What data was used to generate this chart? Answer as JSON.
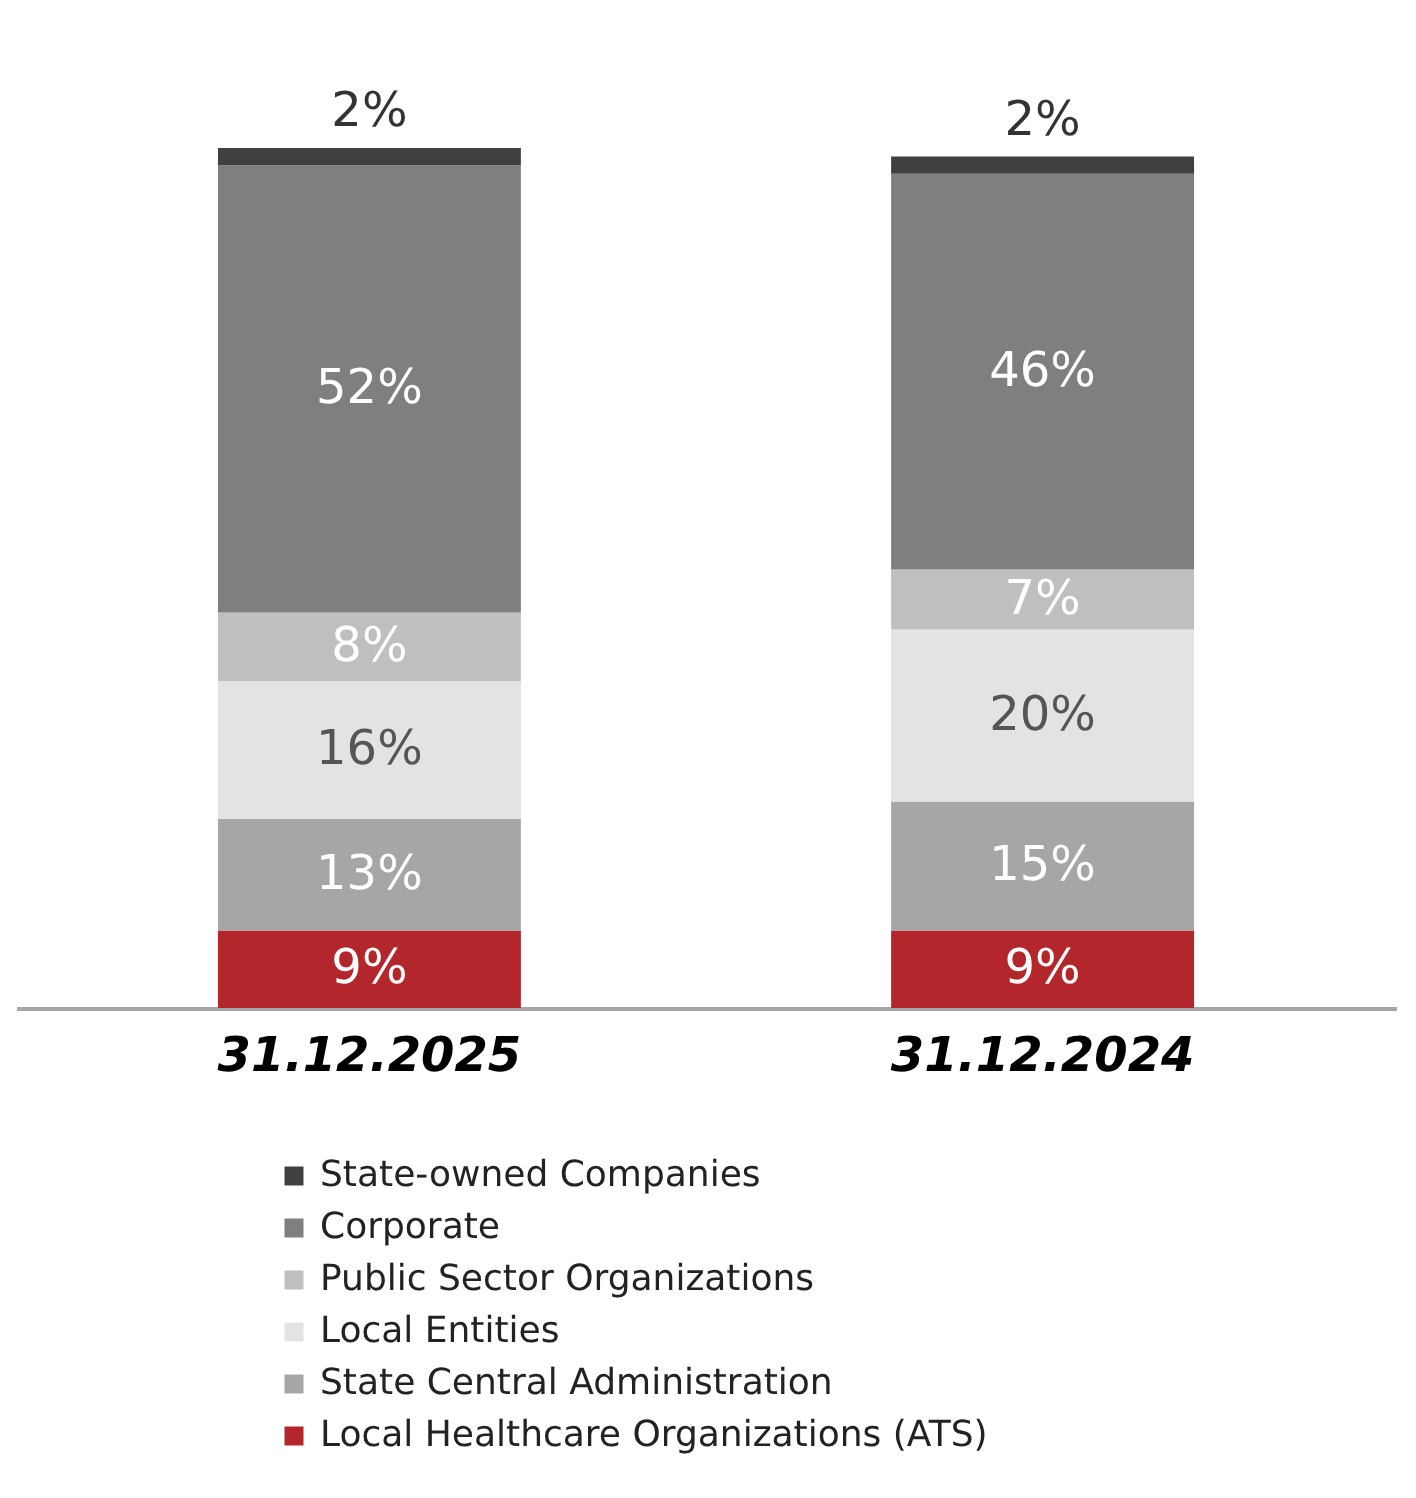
{
  "chart_data": {
    "type": "bar",
    "stacked": true,
    "categories": [
      "31.12.2025",
      "31.12.2024"
    ],
    "legend": "bottom",
    "series": [
      {
        "name": "Local Healthcare Organizations (ATS)",
        "color": "#b3262b",
        "values": [
          9,
          9
        ],
        "value_labels": [
          "9%",
          "9%"
        ]
      },
      {
        "name": "State Central Administration",
        "color": "#a6a6a6",
        "values": [
          13,
          15
        ],
        "value_labels": [
          "13%",
          "15%"
        ]
      },
      {
        "name": "Local Entities",
        "color": "#e3e3e3",
        "values": [
          16,
          20
        ],
        "value_labels": [
          "16%",
          "20%"
        ]
      },
      {
        "name": "Public Sector Organizations",
        "color": "#bfbfbf",
        "values": [
          8,
          7
        ],
        "value_labels": [
          "8%",
          "7%"
        ]
      },
      {
        "name": "Corporate",
        "color": "#7f7f7f",
        "values": [
          52,
          46
        ],
        "value_labels": [
          "52%",
          "46%"
        ]
      },
      {
        "name": "State-owned Companies",
        "color": "#404040",
        "values": [
          2,
          2
        ],
        "value_labels": [
          "2%",
          "2%"
        ]
      }
    ]
  }
}
